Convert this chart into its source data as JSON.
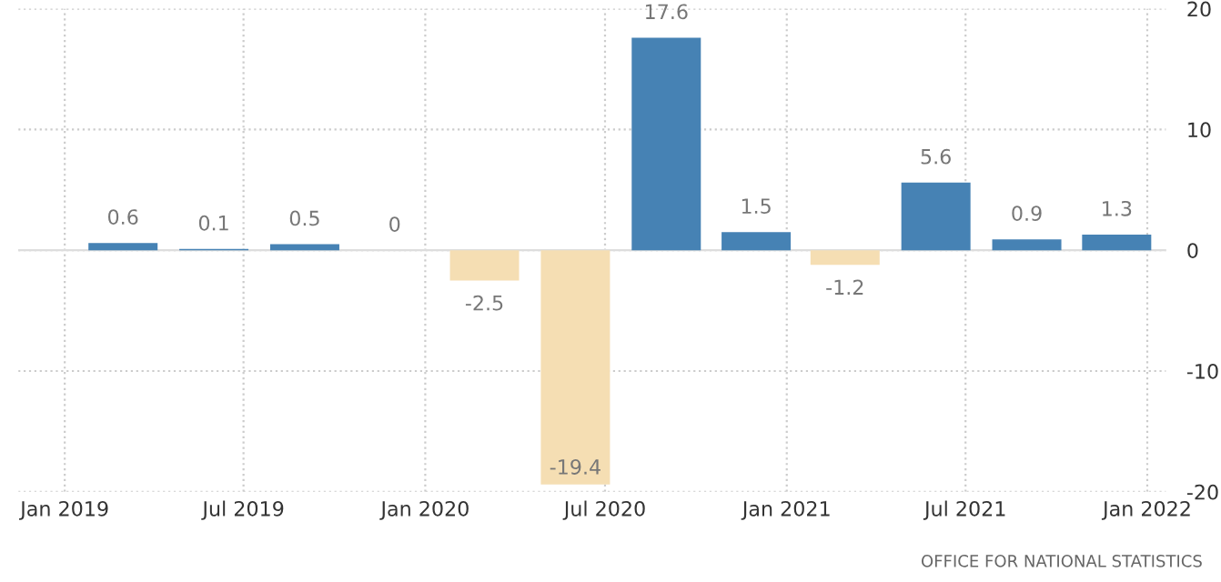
{
  "chart_data": {
    "type": "bar",
    "x": [
      "2019-03",
      "2019-06",
      "2019-09",
      "2019-12",
      "2020-03",
      "2020-06",
      "2020-09",
      "2020-12",
      "2021-03",
      "2021-06",
      "2021-09",
      "2021-12"
    ],
    "values": [
      0.6,
      0.1,
      0.5,
      0,
      -2.5,
      -19.4,
      17.6,
      1.5,
      -1.2,
      5.6,
      0.9,
      1.3
    ],
    "colors": [
      "#4682b4",
      "#4682b4",
      "#4682b4",
      "#4682b4",
      "#f5deb3",
      "#f5deb3",
      "#4682b4",
      "#4682b4",
      "#f5deb3",
      "#4682b4",
      "#4682b4",
      "#4682b4"
    ],
    "data_labels": true,
    "xlim": [
      "2018-11-15",
      "2022-01-20"
    ],
    "xticks": [
      {
        "value": "2019-01",
        "label": "Jan 2019"
      },
      {
        "value": "2019-07",
        "label": "Jul 2019"
      },
      {
        "value": "2020-01",
        "label": "Jan 2020"
      },
      {
        "value": "2020-07",
        "label": "Jul 2020"
      },
      {
        "value": "2021-01",
        "label": "Jan 2021"
      },
      {
        "value": "2021-07",
        "label": "Jul 2021"
      },
      {
        "value": "2022-01",
        "label": "Jan 2022"
      }
    ],
    "ylim": [
      -20,
      20
    ],
    "yticks": [
      -20,
      -10,
      0,
      10,
      20
    ],
    "grid": true,
    "annotations": [
      "OFFICE FOR NATIONAL STATISTICS"
    ]
  }
}
